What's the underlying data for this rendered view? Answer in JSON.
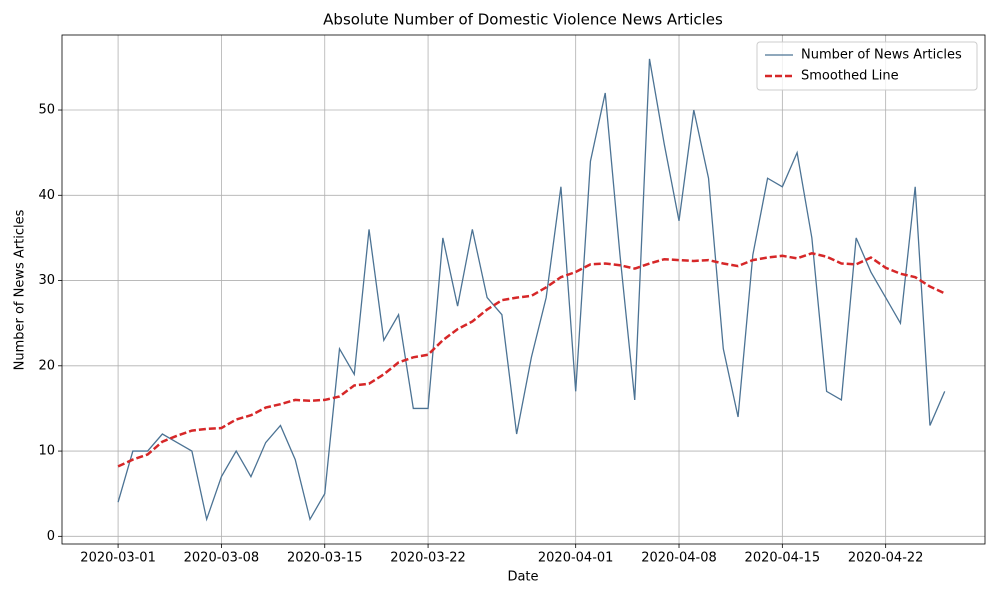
{
  "chart_data": {
    "type": "line",
    "title": "Absolute Number of Domestic Violence News Articles",
    "x_label": "Date",
    "y_label": "Number of News Articles",
    "x": [
      "2020-03-01",
      "2020-03-02",
      "2020-03-03",
      "2020-03-04",
      "2020-03-05",
      "2020-03-06",
      "2020-03-07",
      "2020-03-08",
      "2020-03-09",
      "2020-03-10",
      "2020-03-11",
      "2020-03-12",
      "2020-03-13",
      "2020-03-14",
      "2020-03-15",
      "2020-03-16",
      "2020-03-17",
      "2020-03-18",
      "2020-03-19",
      "2020-03-20",
      "2020-03-21",
      "2020-03-22",
      "2020-03-23",
      "2020-03-24",
      "2020-03-25",
      "2020-03-26",
      "2020-03-27",
      "2020-03-28",
      "2020-03-29",
      "2020-03-30",
      "2020-03-31",
      "2020-04-01",
      "2020-04-02",
      "2020-04-03",
      "2020-04-04",
      "2020-04-05",
      "2020-04-06",
      "2020-04-07",
      "2020-04-08",
      "2020-04-09",
      "2020-04-10",
      "2020-04-11",
      "2020-04-12",
      "2020-04-13",
      "2020-04-14",
      "2020-04-15",
      "2020-04-16",
      "2020-04-17",
      "2020-04-18",
      "2020-04-19",
      "2020-04-20",
      "2020-04-21",
      "2020-04-22",
      "2020-04-23",
      "2020-04-24",
      "2020-04-25",
      "2020-04-26"
    ],
    "series": [
      {
        "name": "Number of News Articles",
        "color": "#4c7394",
        "style": "solid",
        "values": [
          4,
          10,
          10,
          12,
          11,
          10,
          2,
          7,
          10,
          7,
          11,
          13,
          9,
          2,
          5,
          22,
          19,
          36,
          23,
          26,
          15,
          15,
          35,
          27,
          36,
          28,
          26,
          12,
          21,
          28,
          41,
          17,
          44,
          52,
          33,
          16,
          56,
          46,
          37,
          50,
          42,
          22,
          14,
          33,
          42,
          41,
          45,
          35,
          17,
          16,
          35,
          31,
          28,
          25,
          41,
          13,
          17
        ]
      },
      {
        "name": "Smoothed Line",
        "color": "#d62728",
        "style": "dashed",
        "values": [
          8.2,
          9,
          9.6,
          11.1,
          11.8,
          12.4,
          12.6,
          12.7,
          13.7,
          14.2,
          15.1,
          15.5,
          16,
          15.9,
          16,
          16.4,
          17.7,
          17.9,
          19,
          20.4,
          21,
          21.3,
          23,
          24.3,
          25.2,
          26.6,
          27.7,
          28,
          28.2,
          29.2,
          30.4,
          31,
          31.9,
          32,
          31.8,
          31.4,
          32,
          32.5,
          32.4,
          32.3,
          32.4,
          32,
          31.7,
          32.4,
          32.7,
          32.9,
          32.6,
          33.2,
          32.8,
          32,
          31.9,
          32.7,
          31.5,
          30.8,
          30.4,
          29.3,
          28.5
        ]
      }
    ],
    "xlim": [
      "2020-02-26T04:48:00Z",
      "2020-04-28T17:30:00Z"
    ],
    "xticks": [
      "2020-03-01",
      "2020-03-08",
      "2020-03-15",
      "2020-03-22",
      "2020-04-01",
      "2020-04-08",
      "2020-04-15",
      "2020-04-22"
    ],
    "ylim": [
      -0.9,
      58.8
    ],
    "yticks": [
      0,
      10,
      20,
      30,
      40,
      50
    ],
    "grid": true,
    "legend": "upper right"
  }
}
